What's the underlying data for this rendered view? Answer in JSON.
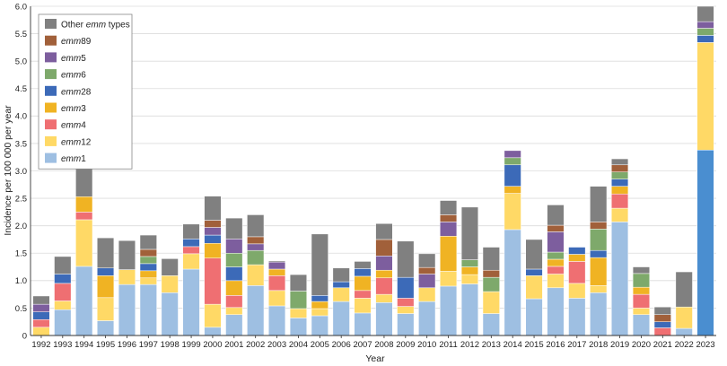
{
  "chart_data": {
    "type": "stacked-bar",
    "xlabel": "Year",
    "ylabel": "Incidence per 100 000 per year",
    "ylim": [
      0,
      6.0
    ],
    "yticks": [
      "0",
      "0.5",
      "1.0",
      "1.5",
      "2.0",
      "2.5",
      "3.0",
      "3.5",
      "4.0",
      "4.5",
      "5.0",
      "5.5",
      "6.0"
    ],
    "legend_position": "top-left",
    "categories": [
      "1992",
      "1993",
      "1994",
      "1995",
      "1996",
      "1997",
      "1998",
      "1999",
      "2000",
      "2001",
      "2002",
      "2003",
      "2004",
      "2005",
      "2006",
      "2007",
      "2008",
      "2009",
      "2010",
      "2011",
      "2012",
      "2013",
      "2014",
      "2015",
      "2016",
      "2017",
      "2018",
      "2019",
      "2020",
      "2021",
      "2022",
      "2023"
    ],
    "series": [
      {
        "key": "emm1",
        "prefix": "emm",
        "suffix": "1",
        "color": "#9ebfe2",
        "values": [
          0,
          0.47,
          1.26,
          0.27,
          0.93,
          0.93,
          0.78,
          1.21,
          0.15,
          0.38,
          0.91,
          0.54,
          0.32,
          0.36,
          0.62,
          0.41,
          0.6,
          0.4,
          0.62,
          0.9,
          0.94,
          0.4,
          1.93,
          0.67,
          0.87,
          0.68,
          0.78,
          2.07,
          0.38,
          0,
          0.13,
          3.38
        ]
      },
      {
        "key": "emm12",
        "prefix": "emm",
        "suffix": "12",
        "color": "#ffd966",
        "values": [
          0.15,
          0.16,
          0.85,
          0.42,
          0.27,
          0.12,
          0.31,
          0.28,
          0.42,
          0.13,
          0.38,
          0.28,
          0.17,
          0.13,
          0.25,
          0.27,
          0.15,
          0.13,
          0.25,
          0.27,
          0.17,
          0.4,
          0.66,
          0.42,
          0.25,
          0.27,
          0.13,
          0.25,
          0.12,
          0,
          0.39,
          1.96
        ]
      },
      {
        "key": "emm4",
        "prefix": "emm",
        "suffix": "4",
        "color": "#ef6f72",
        "values": [
          0.14,
          0.32,
          0.14,
          0,
          0,
          0,
          0,
          0.13,
          0.84,
          0.22,
          0,
          0.27,
          0,
          0,
          0,
          0.14,
          0.3,
          0.15,
          0,
          0,
          0,
          0,
          0,
          0,
          0.14,
          0.4,
          0,
          0.26,
          0.25,
          0.14,
          0,
          0
        ]
      },
      {
        "key": "emm3",
        "prefix": "emm",
        "suffix": "3",
        "color": "#f0b323",
        "values": [
          0,
          0,
          0.28,
          0.4,
          0,
          0.13,
          0,
          0,
          0.27,
          0.27,
          0,
          0.12,
          0,
          0.13,
          0,
          0.26,
          0.14,
          0,
          0,
          0.64,
          0.14,
          0,
          0.13,
          0,
          0.13,
          0.13,
          0.51,
          0.14,
          0.13,
          0,
          0,
          0
        ]
      },
      {
        "key": "emm28",
        "prefix": "emm",
        "suffix": "28",
        "color": "#3c6ab8",
        "values": [
          0.14,
          0.17,
          0,
          0.14,
          0,
          0.13,
          0,
          0.14,
          0.15,
          0.25,
          0,
          0,
          0,
          0.11,
          0.11,
          0.14,
          0,
          0.38,
          0,
          0,
          0,
          0,
          0.39,
          0.12,
          0,
          0.13,
          0.13,
          0.13,
          0,
          0.11,
          0,
          0.13
        ]
      },
      {
        "key": "emm6",
        "prefix": "emm",
        "suffix": "6",
        "color": "#7ea96b",
        "values": [
          0,
          0,
          0,
          0,
          0,
          0.13,
          0,
          0,
          0,
          0.25,
          0.26,
          0,
          0.32,
          0,
          0,
          0,
          0,
          0,
          0,
          0,
          0.13,
          0.26,
          0.13,
          0,
          0.13,
          0,
          0.39,
          0.13,
          0.25,
          0,
          0,
          0.13
        ]
      },
      {
        "key": "emm5",
        "prefix": "emm",
        "suffix": "5",
        "color": "#7d5e9e",
        "values": [
          0.14,
          0,
          0,
          0,
          0,
          0,
          0,
          0,
          0.14,
          0.26,
          0.12,
          0.13,
          0,
          0,
          0,
          0,
          0.26,
          0,
          0.25,
          0.26,
          0,
          0,
          0.13,
          0,
          0.37,
          0,
          0,
          0,
          0,
          0,
          0,
          0.12
        ]
      },
      {
        "key": "emm89",
        "prefix": "emm",
        "suffix": "89",
        "color": "#a1603a",
        "values": [
          0,
          0,
          0,
          0,
          0,
          0.13,
          0,
          0,
          0.13,
          0,
          0.13,
          0,
          0,
          0,
          0,
          0,
          0.3,
          0,
          0.12,
          0.13,
          0,
          0.13,
          0,
          0,
          0.12,
          0,
          0.13,
          0.13,
          0,
          0.13,
          0,
          0
        ]
      },
      {
        "key": "other",
        "prefix": "Other ",
        "suffix": "emm",
        "suffix2": " types",
        "color": "#808080",
        "values": [
          0.15,
          0.32,
          0.57,
          0.55,
          0.53,
          0.26,
          0.31,
          0.27,
          0.44,
          0.38,
          0.4,
          0.02,
          0.3,
          1.12,
          0.25,
          0.13,
          0.29,
          0.66,
          0.25,
          0.26,
          0.96,
          0.42,
          0,
          0.54,
          0.37,
          0,
          0.65,
          0.11,
          0.12,
          0.14,
          0.64,
          0.28
        ]
      }
    ]
  }
}
